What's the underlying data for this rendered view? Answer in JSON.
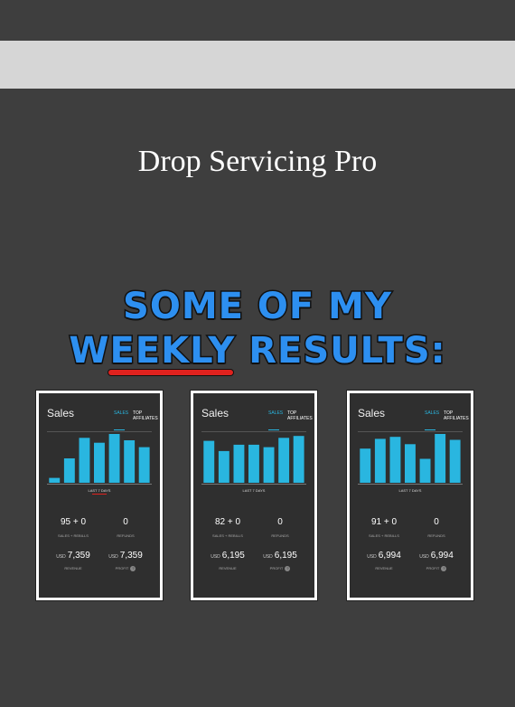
{
  "page": {
    "title": "Drop Servicing Pro"
  },
  "headline": {
    "line1": "SOME OF MY",
    "line2": "WEEKLY RESULTS:"
  },
  "colors": {
    "accent_blue": "#2d8ff0",
    "bar_color": "#29b6e0",
    "underline_red": "#e0221e",
    "background": "#3e3e3e"
  },
  "cards": [
    {
      "title": "Sales",
      "tab_sales": "SALES",
      "tab_affiliates": "TOP AFFILIATES",
      "period": "LAST 7 DAYS",
      "sales_value": "95 + 0",
      "sales_label": "SALES + REBILLS",
      "refunds_value": "0",
      "refunds_label": "REFUNDS",
      "currency": "USD",
      "revenue_value": "7,359",
      "revenue_label": "REVENUE",
      "profit_value": "7,359",
      "profit_label": "PROFIT"
    },
    {
      "title": "Sales",
      "tab_sales": "SALES",
      "tab_affiliates": "TOP AFFILIATES",
      "period": "LAST 7 DAYS",
      "sales_value": "82 + 0",
      "sales_label": "SALES + REBILLS",
      "refunds_value": "0",
      "refunds_label": "REFUNDS",
      "currency": "USD",
      "revenue_value": "6,195",
      "revenue_label": "REVENUE",
      "profit_value": "6,195",
      "profit_label": "PROFIT"
    },
    {
      "title": "Sales",
      "tab_sales": "SALES",
      "tab_affiliates": "TOP AFFILIATES",
      "period": "LAST 7 DAYS",
      "sales_value": "91 + 0",
      "sales_label": "SALES + REBILLS",
      "refunds_value": "0",
      "refunds_label": "REFUNDS",
      "currency": "USD",
      "revenue_value": "6,994",
      "revenue_label": "REVENUE",
      "profit_value": "6,994",
      "profit_label": "PROFIT"
    }
  ],
  "chart_data": [
    {
      "type": "bar",
      "ylim": [
        0,
        1
      ],
      "values": [
        0.1,
        0.5,
        0.92,
        0.82,
        1.0,
        0.87,
        0.73
      ]
    },
    {
      "type": "bar",
      "ylim": [
        0,
        1
      ],
      "values": [
        0.86,
        0.65,
        0.78,
        0.78,
        0.73,
        0.92,
        0.96
      ]
    },
    {
      "type": "bar",
      "ylim": [
        0,
        1
      ],
      "values": [
        0.7,
        0.9,
        0.94,
        0.79,
        0.49,
        1.0,
        0.88
      ]
    }
  ]
}
